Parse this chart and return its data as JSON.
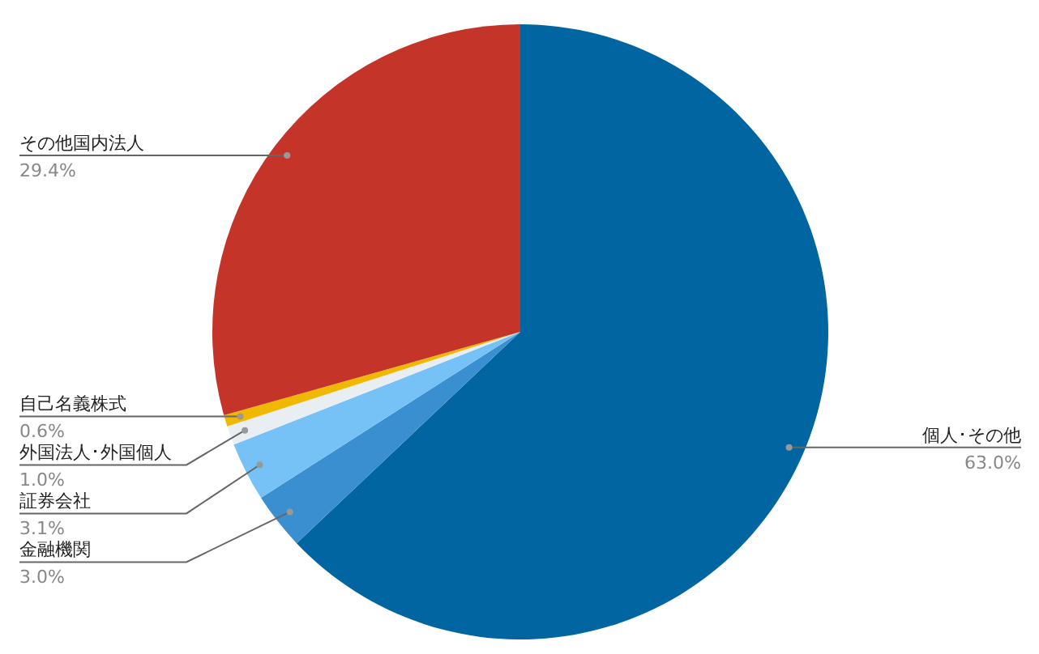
{
  "chart_data": {
    "type": "pie",
    "categories": [
      "個人･その他",
      "金融機関",
      "証券会社",
      "外国法人･外国個人",
      "自己名義株式",
      "その他国内法人"
    ],
    "values": [
      63.0,
      3.0,
      3.1,
      1.0,
      0.6,
      29.4
    ],
    "colors": [
      "#0065a0",
      "#3a8fd0",
      "#76c2f7",
      "#e9eef2",
      "#f0b800",
      "#c43428"
    ],
    "value_labels": [
      "63.0%",
      "3.0%",
      "3.1%",
      "1.0%",
      "0.6%",
      "29.4%"
    ],
    "legend": false
  }
}
